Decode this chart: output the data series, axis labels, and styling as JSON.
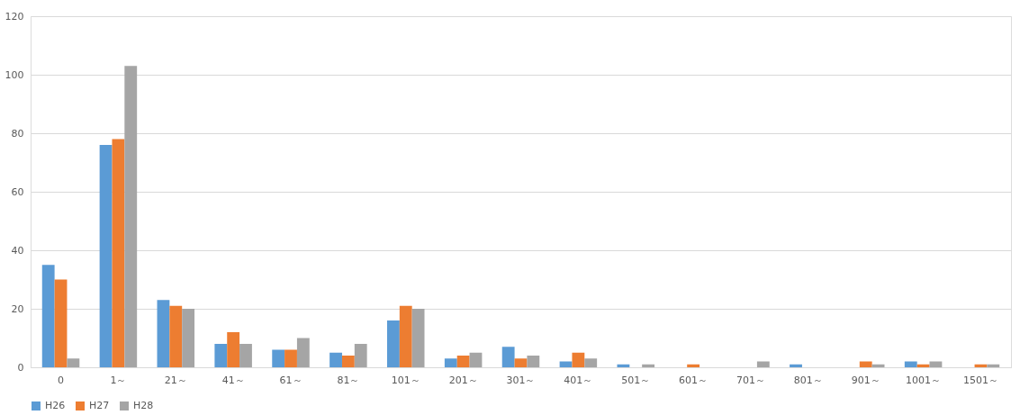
{
  "chart_data": {
    "type": "bar",
    "categories": [
      "0",
      "1～",
      "21～",
      "41～",
      "61～",
      "81～",
      "101～",
      "201～",
      "301～",
      "401～",
      "501～",
      "601～",
      "701～",
      "801～",
      "901～",
      "1001～",
      "1501～"
    ],
    "series": [
      {
        "name": "H26",
        "color": "#5b9bd5",
        "values": [
          35,
          76,
          23,
          8,
          6,
          5,
          16,
          3,
          7,
          2,
          1,
          0,
          0,
          1,
          0,
          2,
          0
        ]
      },
      {
        "name": "H27",
        "color": "#ed7d31",
        "values": [
          30,
          78,
          21,
          12,
          6,
          4,
          21,
          4,
          3,
          5,
          0,
          1,
          0,
          0,
          2,
          1,
          1
        ]
      },
      {
        "name": "H28",
        "color": "#a5a5a5",
        "values": [
          3,
          103,
          20,
          8,
          10,
          8,
          20,
          5,
          4,
          3,
          1,
          0,
          2,
          0,
          1,
          2,
          1
        ]
      }
    ],
    "ylim": [
      0,
      120
    ],
    "yticks": [
      0,
      20,
      40,
      60,
      80,
      100,
      120
    ],
    "grid": "y",
    "legend": "bottom"
  }
}
